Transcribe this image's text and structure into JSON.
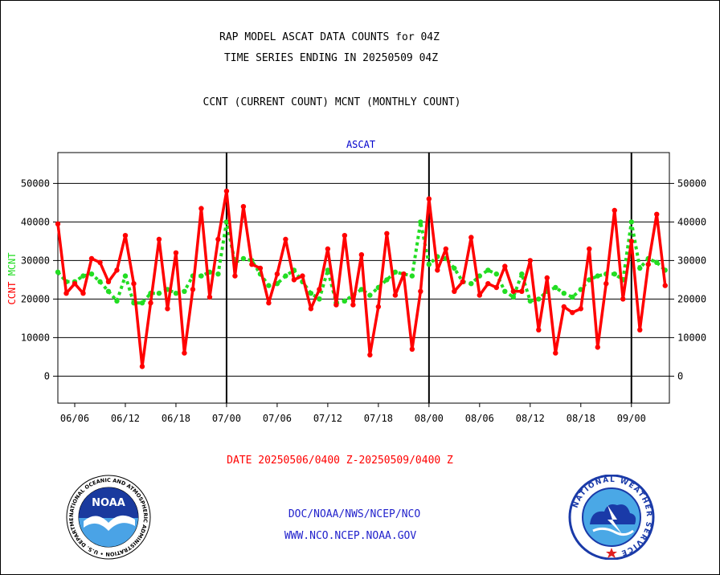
{
  "header": {
    "title_line1": "RAP MODEL ASCAT DATA COUNTS for 04Z",
    "title_line2": "TIME SERIES ENDING IN 20250509 04Z",
    "subtitle": "CCNT (CURRENT COUNT) MCNT (MONTHLY COUNT)"
  },
  "footer": {
    "date_range": "DATE 20250506/0400 Z-20250509/0400 Z",
    "org_line": "DOC/NOAA/NWS/NCEP/NCO",
    "website": "WWW.NCO.NCEP.NOAA.GOV"
  },
  "logos": {
    "noaa_text": "NOAA",
    "noaa_ring": "NATIONAL OCEANIC AND ATMOSPHERIC ADMINISTRATION • U.S. DEPARTMENT OF COMMERCE",
    "nws_ring": "NATIONAL WEATHER SERVICE"
  },
  "colors": {
    "ccnt": "#ff0000",
    "mcnt": "#22dd22",
    "panel_title": "#0000cc",
    "footer_blue": "#2222cc",
    "date_red": "#ff0000"
  },
  "chart_data": {
    "type": "line",
    "title": "ASCAT",
    "ylabel_left": [
      "CCNT",
      "MCNT"
    ],
    "ylim": [
      -7000,
      58000
    ],
    "yticks": [
      0,
      10000,
      20000,
      30000,
      40000,
      50000
    ],
    "ytick_labels": [
      "0",
      "10000",
      "20000",
      "30000",
      "40000",
      "50000"
    ],
    "xticks": [
      {
        "label": "06/06",
        "x": 4
      },
      {
        "label": "06/12",
        "x": 16
      },
      {
        "label": "06/18",
        "x": 28
      },
      {
        "label": "07/00",
        "x": 40
      },
      {
        "label": "07/06",
        "x": 52
      },
      {
        "label": "07/12",
        "x": 64
      },
      {
        "label": "07/18",
        "x": 76
      },
      {
        "label": "08/00",
        "x": 88
      },
      {
        "label": "08/06",
        "x": 100
      },
      {
        "label": "08/12",
        "x": 112
      },
      {
        "label": "08/18",
        "x": 124
      },
      {
        "label": "09/00",
        "x": 136
      }
    ],
    "day_boundaries": [
      40,
      88,
      136
    ],
    "x_range": [
      0,
      145
    ],
    "series": [
      {
        "name": "CCNT",
        "style": "solid",
        "x": [
          0,
          2,
          4,
          6,
          8,
          10,
          12,
          14,
          16,
          18,
          20,
          22,
          24,
          26,
          28,
          30,
          32,
          34,
          36,
          38,
          40,
          42,
          44,
          46,
          48,
          50,
          52,
          54,
          56,
          58,
          60,
          62,
          64,
          66,
          68,
          70,
          72,
          74,
          76,
          78,
          80,
          82,
          84,
          86,
          88,
          90,
          92,
          94,
          96,
          98,
          100,
          102,
          104,
          106,
          108,
          110,
          112,
          114,
          116,
          118,
          120,
          122,
          124,
          126,
          128,
          130,
          132,
          134,
          136,
          138,
          140,
          142,
          144
        ],
        "values": [
          39500,
          21500,
          24000,
          21500,
          30500,
          29500,
          24500,
          27500,
          36500,
          24000,
          2500,
          19000,
          35500,
          17500,
          32000,
          6000,
          22500,
          43500,
          20500,
          35500,
          48000,
          26000,
          44000,
          29000,
          28000,
          19000,
          26500,
          35500,
          25000,
          26000,
          17500,
          22500,
          33000,
          18500,
          36500,
          18500,
          31500,
          5500,
          18000,
          37000,
          21000,
          26500,
          7000,
          22000,
          46000,
          27500,
          33000,
          22000,
          24500,
          36000,
          21000,
          24000,
          23000,
          28500,
          22000,
          22000,
          30000,
          12000,
          25500,
          6000,
          18000,
          16500,
          17500,
          33000,
          7500,
          24000,
          43000,
          20000,
          35000,
          12000,
          29000,
          42000,
          23500
        ]
      },
      {
        "name": "MCNT",
        "style": "dotted",
        "x": [
          0,
          2,
          4,
          6,
          8,
          10,
          12,
          14,
          16,
          18,
          20,
          22,
          24,
          26,
          28,
          30,
          32,
          34,
          36,
          38,
          40,
          42,
          44,
          46,
          48,
          50,
          52,
          54,
          56,
          58,
          60,
          62,
          64,
          66,
          68,
          70,
          72,
          74,
          76,
          78,
          80,
          82,
          84,
          86,
          88,
          90,
          92,
          94,
          96,
          98,
          100,
          102,
          104,
          106,
          108,
          110,
          112,
          114,
          116,
          118,
          120,
          122,
          124,
          126,
          128,
          130,
          132,
          134,
          136,
          138,
          140,
          142,
          144
        ],
        "values": [
          27000,
          24500,
          24500,
          26000,
          26500,
          24500,
          22000,
          19500,
          26000,
          19000,
          19000,
          21500,
          21500,
          22500,
          21500,
          22000,
          26000,
          26000,
          27000,
          26500,
          40000,
          29500,
          30500,
          30000,
          26500,
          23500,
          24000,
          26000,
          27500,
          24500,
          21500,
          20000,
          27500,
          19000,
          19500,
          21000,
          22500,
          21000,
          23000,
          25000,
          27000,
          26500,
          26000,
          40000,
          29000,
          31000,
          30500,
          28000,
          24500,
          24000,
          26000,
          27500,
          26500,
          22000,
          20500,
          26500,
          19500,
          20000,
          22000,
          23000,
          21500,
          20500,
          22500,
          25000,
          26000,
          26500,
          26500,
          25000,
          40000,
          28000,
          30500,
          29500,
          27500
        ]
      }
    ]
  }
}
